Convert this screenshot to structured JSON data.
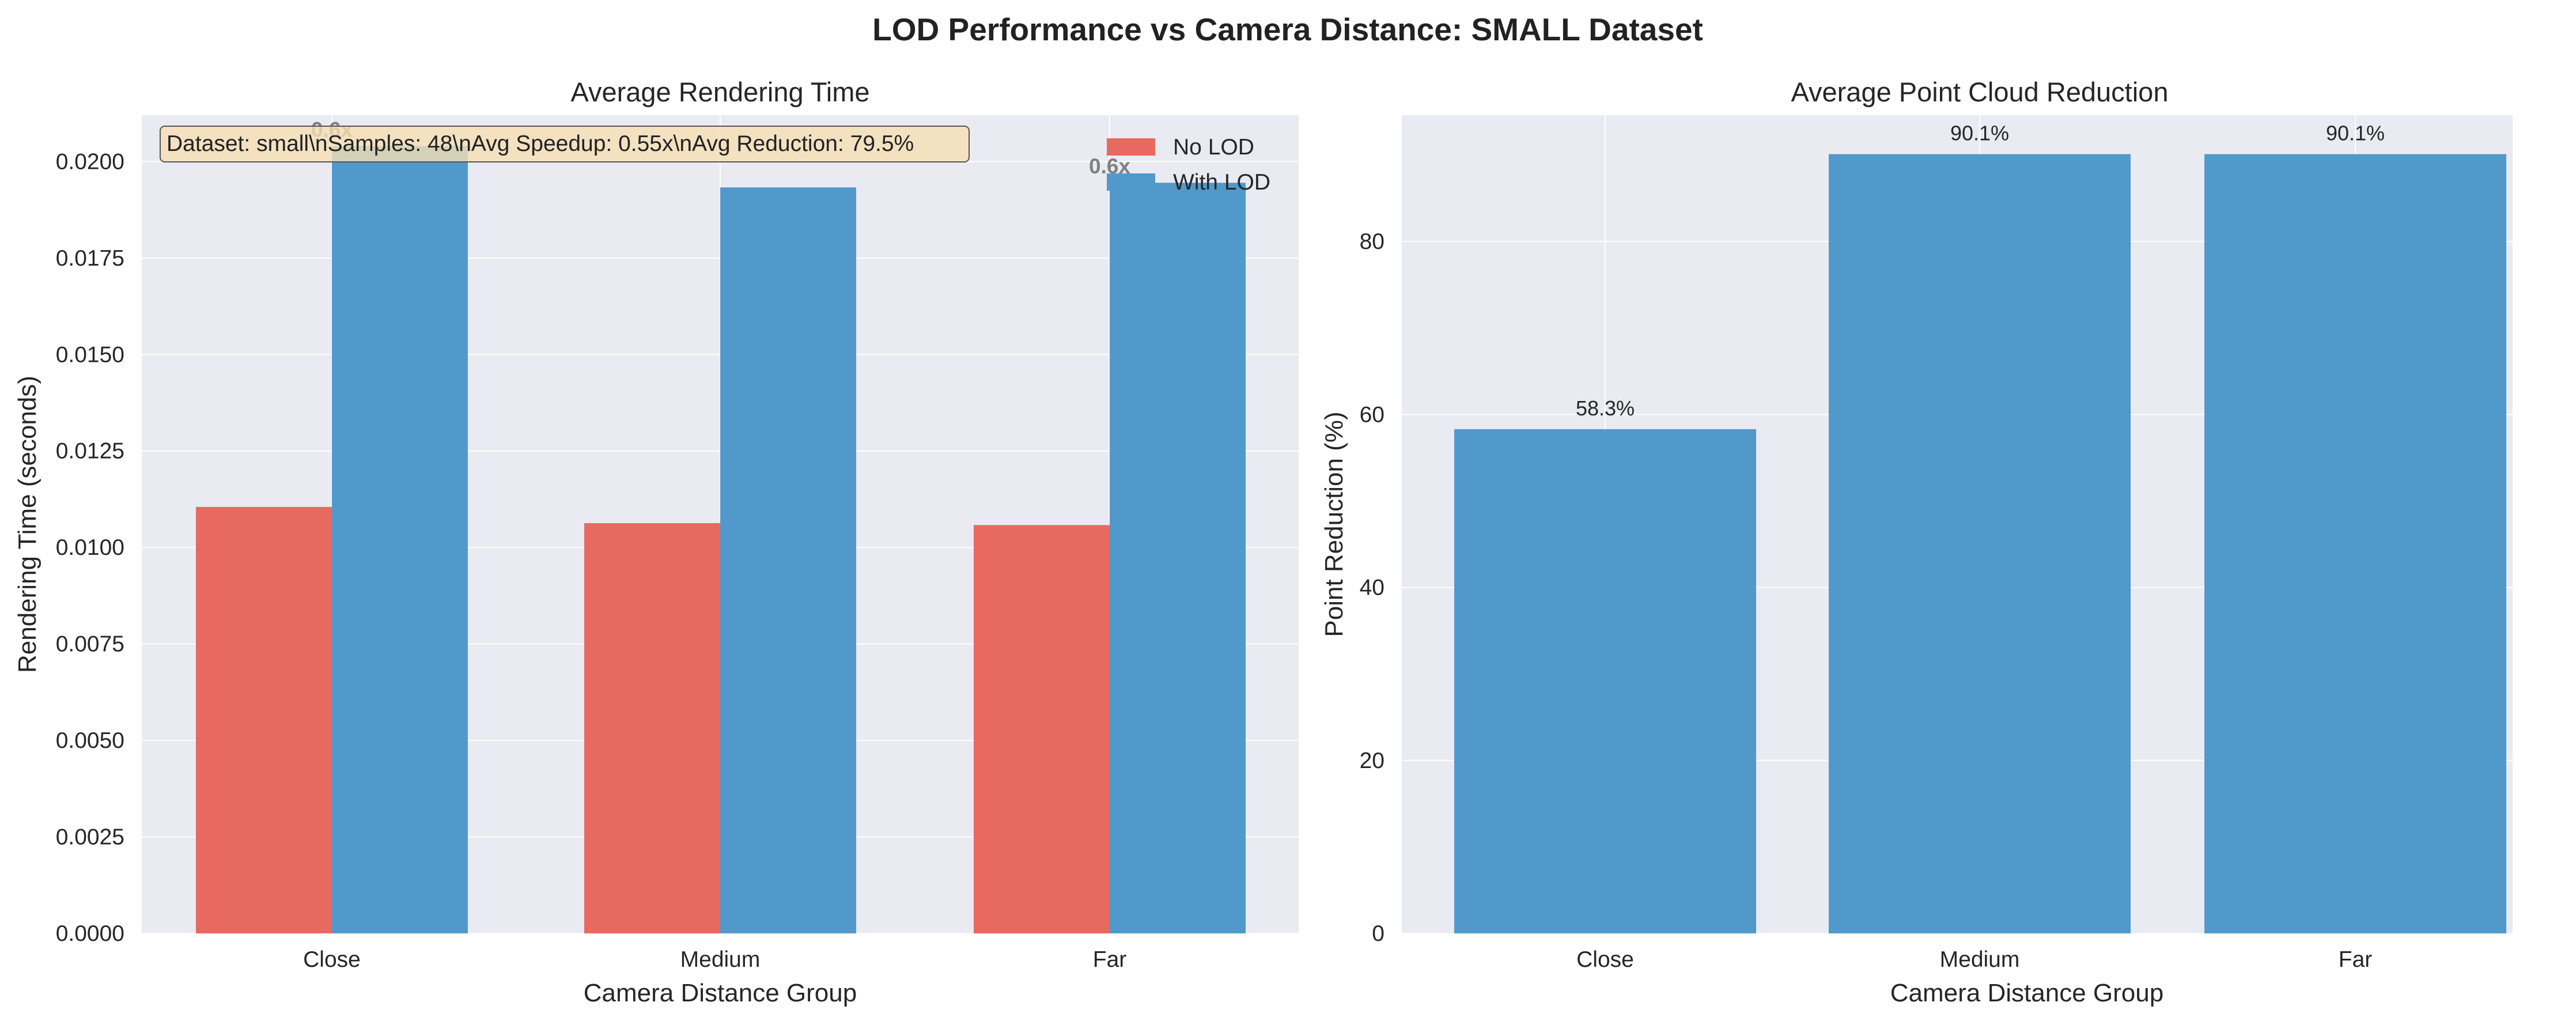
{
  "figure": {
    "suptitle": "LOD Performance vs Camera Distance: SMALL Dataset"
  },
  "colors": {
    "no_lod": "#e8695f",
    "with_lod": "#5299cb",
    "reduction": "#5299cb",
    "plot_bg": "#eaeaf2",
    "info_box_fill": "#f5deb3",
    "speedup_label": "#808080"
  },
  "chart_data": [
    {
      "type": "bar",
      "title": "Average Rendering Time",
      "xlabel": "Camera Distance Group",
      "ylabel": "Rendering Time (seconds)",
      "categories": [
        "Close",
        "Medium",
        "Far"
      ],
      "ylim": [
        0,
        0.0212
      ],
      "yticks": [
        "0.0000",
        "0.0025",
        "0.0050",
        "0.0075",
        "0.0100",
        "0.0125",
        "0.0150",
        "0.0175",
        "0.0200"
      ],
      "series": [
        {
          "name": "No LOD",
          "values": [
            0.01105,
            0.01063,
            0.01058
          ]
        },
        {
          "name": "With LOD",
          "values": [
            0.0204,
            0.01933,
            0.01945
          ]
        }
      ],
      "bar_labels": [
        "0.6x",
        "",
        "0.6x"
      ],
      "legend": {
        "placement": "upper-right"
      },
      "annotation": "Dataset: small\\nSamples: 48\\nAvg Speedup: 0.55x\\nAvg Reduction: 79.5%",
      "grid": true
    },
    {
      "type": "bar",
      "title": "Average Point Cloud Reduction",
      "xlabel": "Camera Distance Group",
      "ylabel": "Point Reduction (%)",
      "categories": [
        "Close",
        "Medium",
        "Far"
      ],
      "ylim": [
        0,
        94.6
      ],
      "yticks": [
        "0",
        "20",
        "40",
        "60",
        "80"
      ],
      "values": [
        58.3,
        90.1,
        90.1
      ],
      "value_labels": [
        "58.3%",
        "90.1%",
        "90.1%"
      ],
      "grid": true
    }
  ]
}
